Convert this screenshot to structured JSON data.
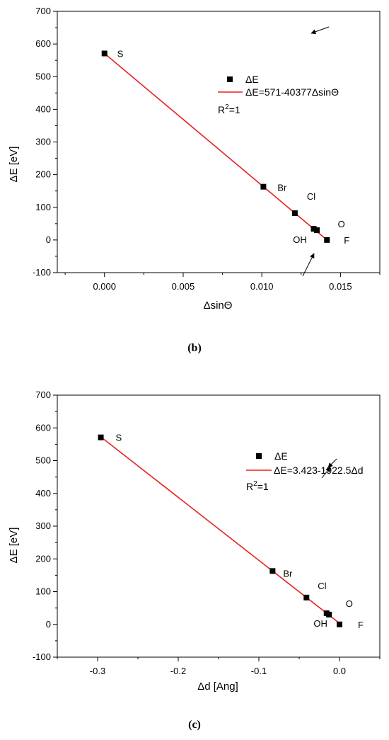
{
  "panels": [
    {
      "caption": "(b)",
      "chart_data": {
        "type": "scatter",
        "title": "",
        "xlabel": "ΔsinΘ",
        "ylabel": "ΔE [eV]",
        "xlim": [
          -0.003,
          0.0175
        ],
        "ylim": [
          -100,
          700
        ],
        "xticks": [
          0.0,
          0.005,
          0.01,
          0.015
        ],
        "xtick_labels": [
          "0.000",
          "0.005",
          "0.010",
          "0.015"
        ],
        "yticks": [
          -100,
          0,
          100,
          200,
          300,
          400,
          500,
          600,
          700
        ],
        "ytick_labels": [
          "-100",
          "0",
          "100",
          "200",
          "300",
          "400",
          "500",
          "600",
          "700"
        ],
        "grid": false,
        "series": [
          {
            "name": "ΔE",
            "marker": "square",
            "color": "#000000",
            "points": [
              {
                "label": "S",
                "x": 0.0,
                "y": 571
              },
              {
                "label": "Br",
                "x": 0.0101,
                "y": 163
              },
              {
                "label": "Cl",
                "x": 0.0121,
                "y": 82
              },
              {
                "label": "O",
                "x": 0.0133,
                "y": 34
              },
              {
                "label": "OH",
                "x": 0.0135,
                "y": 30
              },
              {
                "label": "F",
                "x": 0.01414,
                "y": 0
              }
            ]
          },
          {
            "name": "ΔE=571-40377ΔsinΘ",
            "type": "line",
            "color": "#e8221f",
            "fit": {
              "intercept": 571,
              "slope": -40377
            },
            "x_range": [
              0.0,
              0.01414
            ]
          }
        ],
        "annotation": "R²=1",
        "legend_position": "top-right"
      }
    },
    {
      "caption": "(c)",
      "chart_data": {
        "type": "scatter",
        "title": "",
        "xlabel": "Δd [Ang]",
        "ylabel": "ΔE [eV]",
        "xlim": [
          -0.35,
          0.05
        ],
        "ylim": [
          -100,
          700
        ],
        "xticks": [
          -0.3,
          -0.2,
          -0.1,
          0.0
        ],
        "xtick_labels": [
          "-0.3",
          "-0.2",
          "-0.1",
          "0.0"
        ],
        "yticks": [
          -100,
          0,
          100,
          200,
          300,
          400,
          500,
          600,
          700
        ],
        "ytick_labels": [
          "-100",
          "0",
          "100",
          "200",
          "300",
          "400",
          "500",
          "600",
          "700"
        ],
        "grid": false,
        "series": [
          {
            "name": "ΔE",
            "marker": "square",
            "color": "#000000",
            "points": [
              {
                "label": "S",
                "x": -0.296,
                "y": 571
              },
              {
                "label": "Br",
                "x": -0.083,
                "y": 163
              },
              {
                "label": "Cl",
                "x": -0.041,
                "y": 82
              },
              {
                "label": "O",
                "x": -0.016,
                "y": 34
              },
              {
                "label": "OH",
                "x": -0.013,
                "y": 30
              },
              {
                "label": "F",
                "x": 0.0,
                "y": 0
              }
            ]
          },
          {
            "name": "ΔE=3.423-1922.5Δd",
            "type": "line",
            "color": "#e8221f",
            "fit": {
              "intercept": 3.423,
              "slope": -1922.5
            },
            "x_range": [
              -0.296,
              0.0
            ]
          }
        ],
        "annotation": "R²=1",
        "legend_position": "top-right"
      }
    }
  ]
}
